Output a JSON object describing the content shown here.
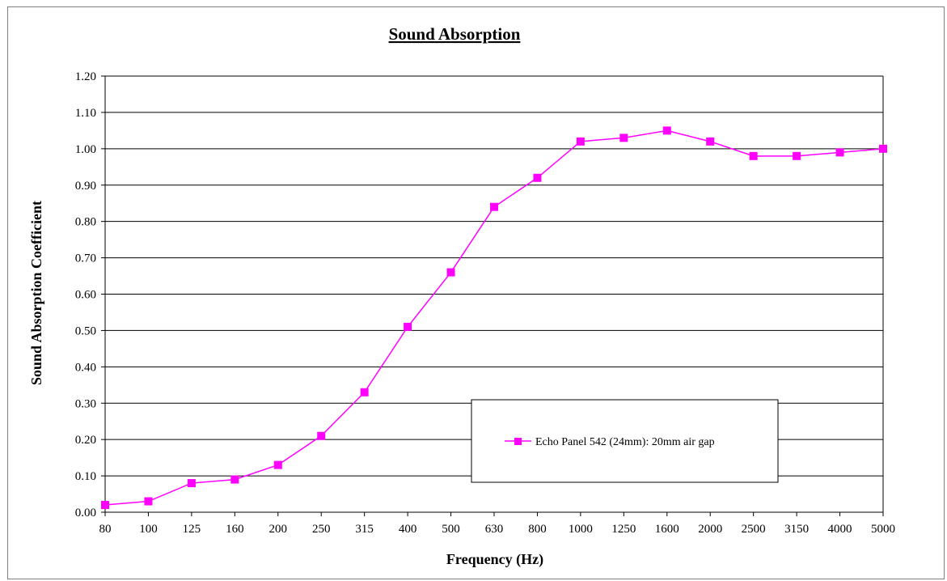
{
  "chart_data": {
    "type": "line",
    "title": "Sound Absorption",
    "xlabel": "Frequency (Hz)",
    "ylabel": "Sound Absorption Coefficient",
    "categories": [
      "80",
      "100",
      "125",
      "160",
      "200",
      "250",
      "315",
      "400",
      "500",
      "630",
      "800",
      "1000",
      "1250",
      "1600",
      "2000",
      "2500",
      "3150",
      "4000",
      "5000"
    ],
    "series": [
      {
        "name": "Echo Panel 542 (24mm): 20mm air gap",
        "color": "#ff00ff",
        "marker": "square",
        "values": [
          0.02,
          0.03,
          0.08,
          0.09,
          0.13,
          0.21,
          0.33,
          0.51,
          0.66,
          0.84,
          0.92,
          1.02,
          1.03,
          1.05,
          1.02,
          0.98,
          0.98,
          0.99,
          1.0
        ]
      }
    ],
    "ylim": [
      0,
      1.2
    ],
    "yticks": [
      "0.00",
      "0.10",
      "0.20",
      "0.30",
      "0.40",
      "0.50",
      "0.60",
      "0.70",
      "0.80",
      "0.90",
      "1.00",
      "1.10",
      "1.20"
    ],
    "grid": "horizontal",
    "legend_position": "inside-lower-right"
  }
}
